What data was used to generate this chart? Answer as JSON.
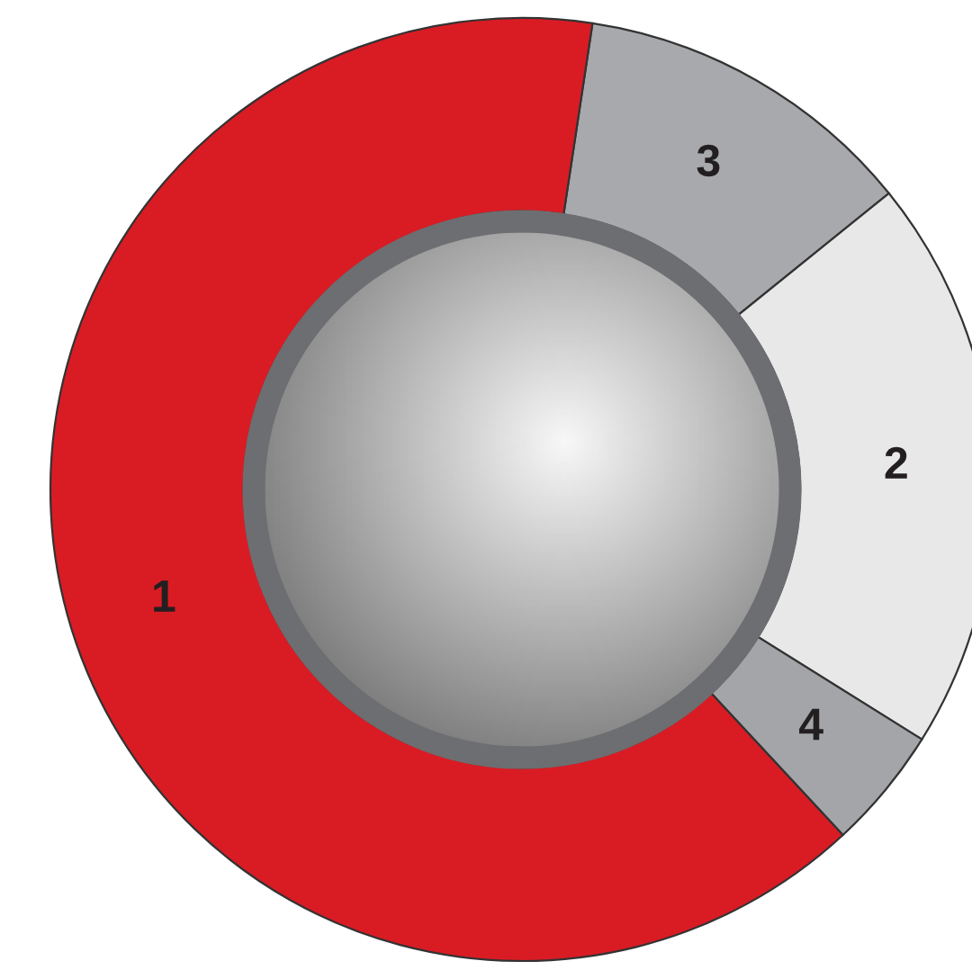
{
  "chart_data": {
    "type": "donut",
    "categories": [
      "3",
      "2",
      "4",
      "1"
    ],
    "values": [
      11.8,
      19.7,
      4.2,
      64.3
    ],
    "colors": [
      "#a7a9ac",
      "#e8e8e9",
      "#a3a5a8",
      "#d91c24"
    ]
  }
}
